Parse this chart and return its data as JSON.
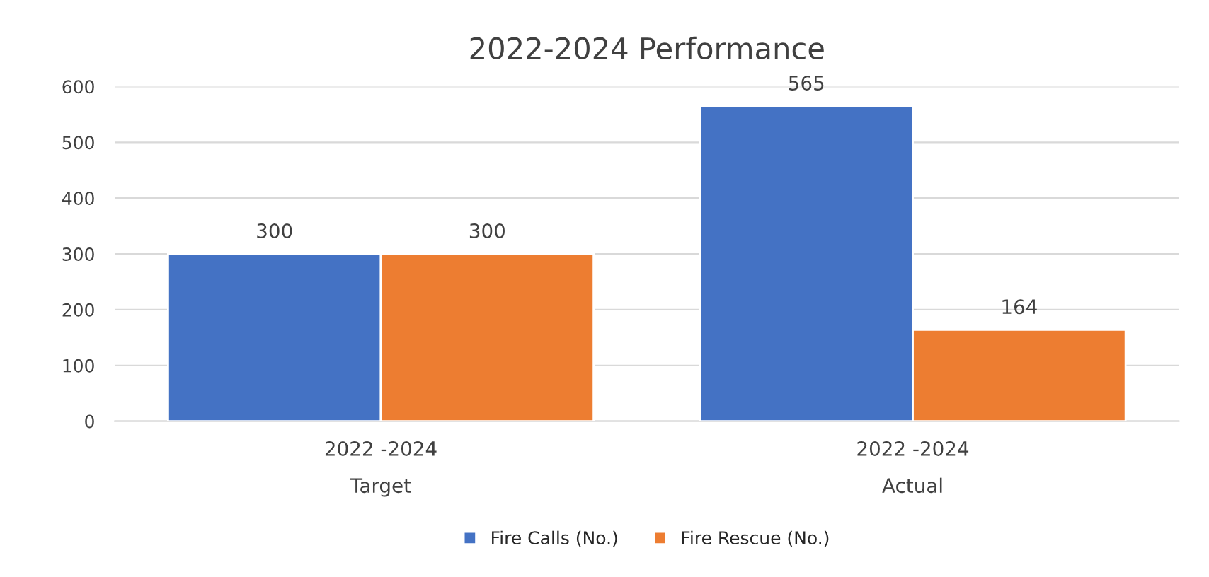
{
  "chart_data": {
    "type": "bar",
    "title": "2022-2024 Performance",
    "categories": [
      "2022 -2024\nTarget",
      "2022 -2024\nActual"
    ],
    "series": [
      {
        "name": "Fire Calls (No.)",
        "color": "#4472c4",
        "values": [
          300,
          565
        ]
      },
      {
        "name": "Fire Rescue (No.)",
        "color": "#ed7d31",
        "values": [
          300,
          164
        ]
      }
    ],
    "ylim": [
      0,
      600
    ],
    "yticks": [
      0,
      100,
      200,
      300,
      400,
      500,
      600
    ],
    "grid": "y",
    "legend": "bottom",
    "data_labels": true
  }
}
